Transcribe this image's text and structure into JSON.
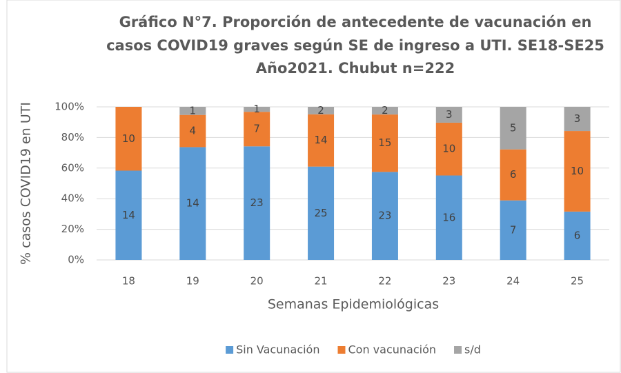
{
  "chart_data": {
    "type": "bar",
    "stacked": true,
    "percent_stacked": true,
    "title": [
      "Gráfico N°7. Proporción de antecedente de vacunación en",
      "casos COVID19 graves según SE de ingreso a UTI. SE18-SE25",
      "Año2021. Chubut n=222"
    ],
    "xlabel": "Semanas Epidemiológicas",
    "ylabel": "% casos COVID19 en UTI",
    "categories": [
      "18",
      "19",
      "20",
      "21",
      "22",
      "23",
      "24",
      "25"
    ],
    "series": [
      {
        "name": "Sin Vacunación",
        "color": "#5b9bd5",
        "values": [
          14,
          14,
          23,
          25,
          23,
          16,
          7,
          6
        ]
      },
      {
        "name": "Con vacunación",
        "color": "#ed7d31",
        "values": [
          10,
          4,
          7,
          14,
          15,
          10,
          6,
          10
        ]
      },
      {
        "name": "s/d",
        "color": "#a5a5a5",
        "values": [
          null,
          1,
          1,
          2,
          2,
          3,
          5,
          3
        ]
      }
    ],
    "ylim": [
      0,
      100
    ],
    "yticks": [
      {
        "value": 0,
        "label": "0%"
      },
      {
        "value": 20,
        "label": "20%"
      },
      {
        "value": 40,
        "label": "40%"
      },
      {
        "value": 60,
        "label": "60%"
      },
      {
        "value": 80,
        "label": "80%"
      },
      {
        "value": 100,
        "label": "100%"
      }
    ],
    "grid": true,
    "legend": "bottom"
  }
}
